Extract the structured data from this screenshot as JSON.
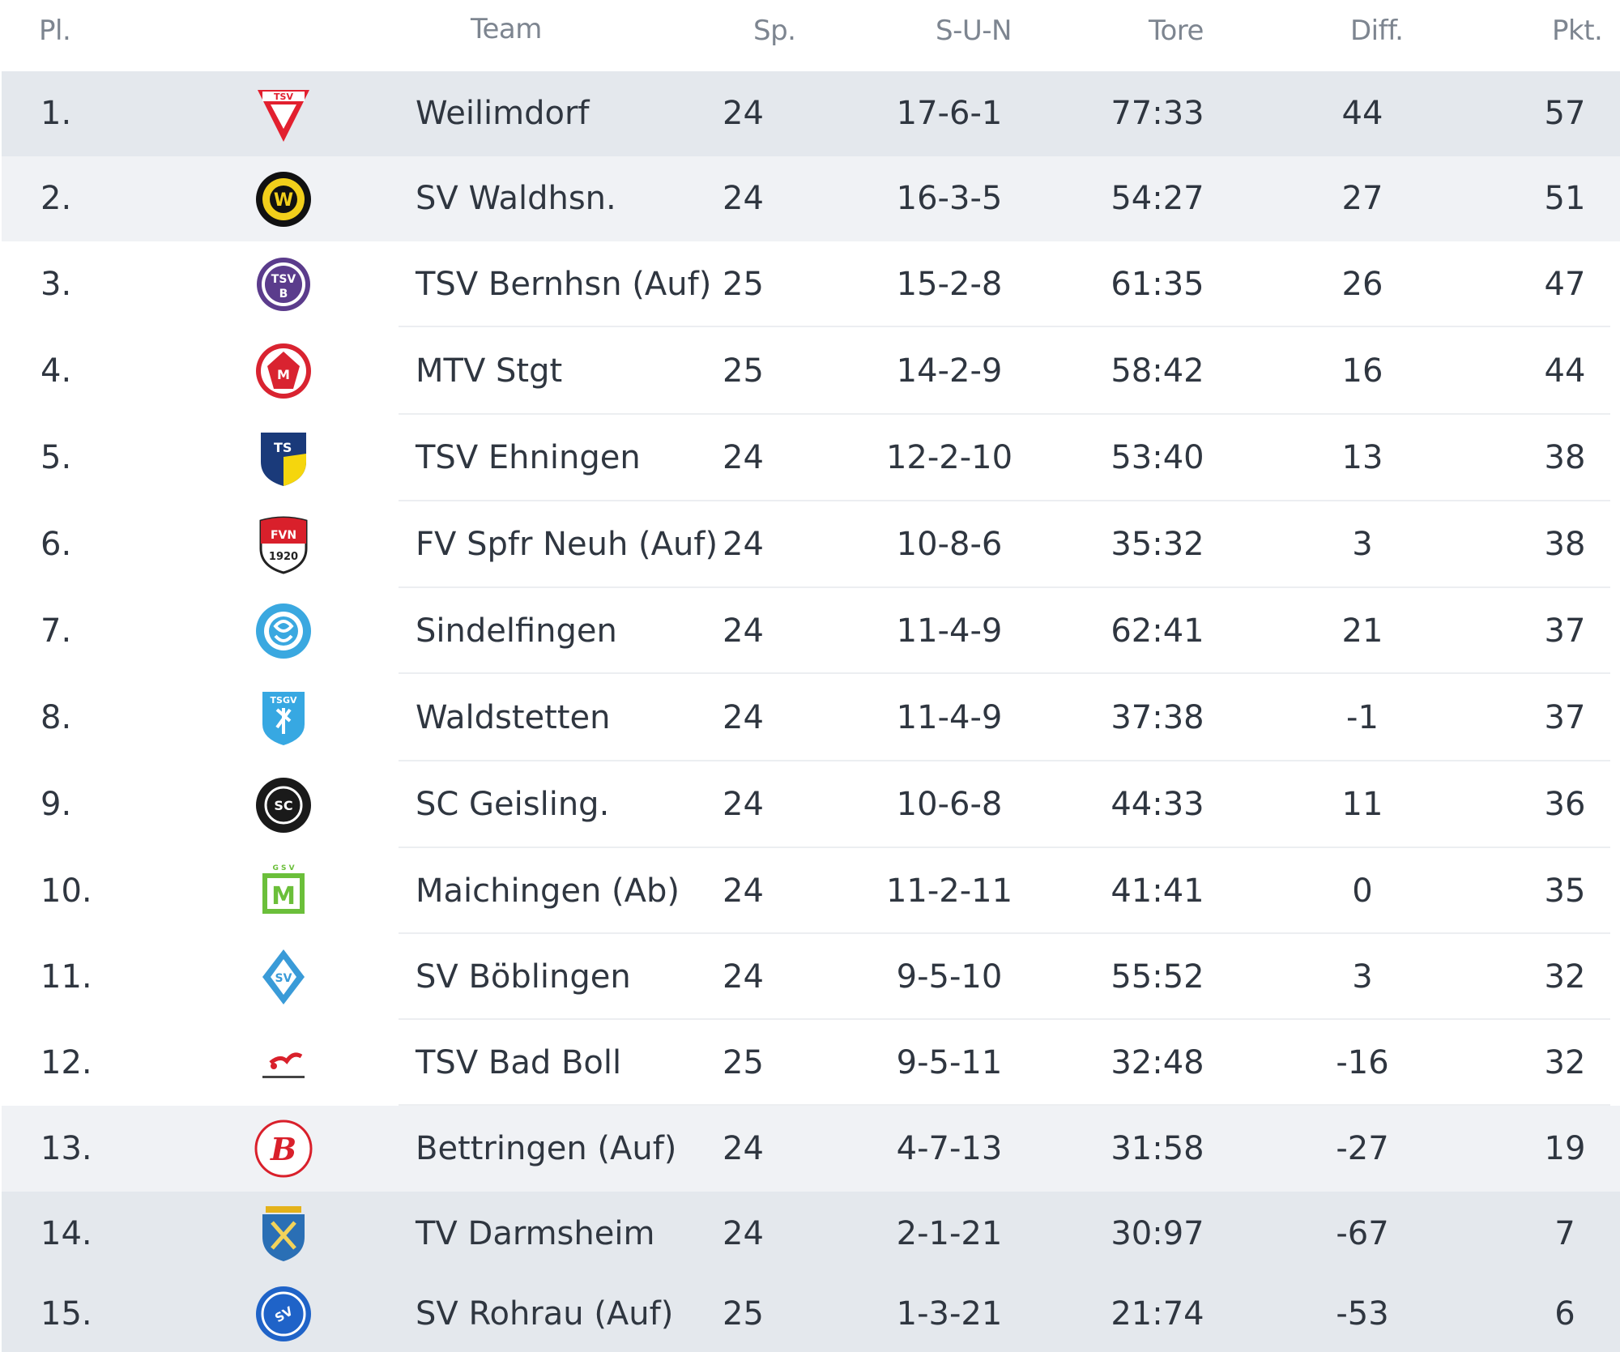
{
  "headers": {
    "pl": "Pl.",
    "team": "Team",
    "sp": "Sp.",
    "sun": "S-U-N",
    "tore": "Tore",
    "diff": "Diff.",
    "pkt": "Pkt."
  },
  "rows": [
    {
      "pl": "1.",
      "team": "Weilimdorf",
      "sp": "24",
      "sun": "17-6-1",
      "tore": "77:33",
      "diff": "44",
      "pkt": "57",
      "logo": "tsv-weilimdorf-logo",
      "highlight": "#e4e8ed"
    },
    {
      "pl": "2.",
      "team": "SV Waldhsn.",
      "sp": "24",
      "sun": "16-3-5",
      "tore": "54:27",
      "diff": "27",
      "pkt": "51",
      "logo": "sv-waldhausen-logo",
      "highlight": "#f0f2f5"
    },
    {
      "pl": "3.",
      "team": "TSV Bernhsn (Auf)",
      "sp": "25",
      "sun": "15-2-8",
      "tore": "61:35",
      "diff": "26",
      "pkt": "47",
      "logo": "tsv-bernhausen-logo",
      "highlight": "#ffffff"
    },
    {
      "pl": "4.",
      "team": "MTV Stgt",
      "sp": "25",
      "sun": "14-2-9",
      "tore": "58:42",
      "diff": "16",
      "pkt": "44",
      "logo": "mtv-stuttgart-logo",
      "highlight": "#ffffff"
    },
    {
      "pl": "5.",
      "team": "TSV Ehningen",
      "sp": "24",
      "sun": "12-2-10",
      "tore": "53:40",
      "diff": "13",
      "pkt": "38",
      "logo": "tsv-ehningen-logo",
      "highlight": "#ffffff"
    },
    {
      "pl": "6.",
      "team": "FV Spfr Neuh (Auf)",
      "sp": "24",
      "sun": "10-8-6",
      "tore": "35:32",
      "diff": "3",
      "pkt": "38",
      "logo": "fv-neuhausen-logo",
      "highlight": "#ffffff"
    },
    {
      "pl": "7.",
      "team": "Sindelfingen",
      "sp": "24",
      "sun": "11-4-9",
      "tore": "62:41",
      "diff": "21",
      "pkt": "37",
      "logo": "sindelfingen-logo",
      "highlight": "#ffffff"
    },
    {
      "pl": "8.",
      "team": "Waldstetten",
      "sp": "24",
      "sun": "11-4-9",
      "tore": "37:38",
      "diff": "-1",
      "pkt": "37",
      "logo": "tsgv-waldstetten-logo",
      "highlight": "#ffffff"
    },
    {
      "pl": "9.",
      "team": "SC Geisling.",
      "sp": "24",
      "sun": "10-6-8",
      "tore": "44:33",
      "diff": "11",
      "pkt": "36",
      "logo": "sc-geislingen-logo",
      "highlight": "#ffffff"
    },
    {
      "pl": "10.",
      "team": "Maichingen (Ab)",
      "sp": "24",
      "sun": "11-2-11",
      "tore": "41:41",
      "diff": "0",
      "pkt": "35",
      "logo": "gsv-maichingen-logo",
      "highlight": "#ffffff"
    },
    {
      "pl": "11.",
      "team": "SV Böblingen",
      "sp": "24",
      "sun": "9-5-10",
      "tore": "55:52",
      "diff": "3",
      "pkt": "32",
      "logo": "sv-boeblingen-logo",
      "highlight": "#ffffff"
    },
    {
      "pl": "12.",
      "team": "TSV Bad Boll",
      "sp": "25",
      "sun": "9-5-11",
      "tore": "32:48",
      "diff": "-16",
      "pkt": "32",
      "logo": "tsv-bad-boll-logo",
      "highlight": "#ffffff"
    },
    {
      "pl": "13.",
      "team": "Bettringen (Auf)",
      "sp": "24",
      "sun": "4-7-13",
      "tore": "31:58",
      "diff": "-27",
      "pkt": "19",
      "logo": "bettringen-logo",
      "highlight": "#f0f2f5"
    },
    {
      "pl": "14.",
      "team": "TV Darmsheim",
      "sp": "24",
      "sun": "2-1-21",
      "tore": "30:97",
      "diff": "-67",
      "pkt": "7",
      "logo": "tv-darmsheim-logo",
      "highlight": "#e4e8ed"
    },
    {
      "pl": "15.",
      "team": "SV Rohrau (Auf)",
      "sp": "25",
      "sun": "1-3-21",
      "tore": "21:74",
      "diff": "-53",
      "pkt": "6",
      "logo": "sv-rohrau-logo",
      "highlight": "#e4e8ed"
    }
  ]
}
